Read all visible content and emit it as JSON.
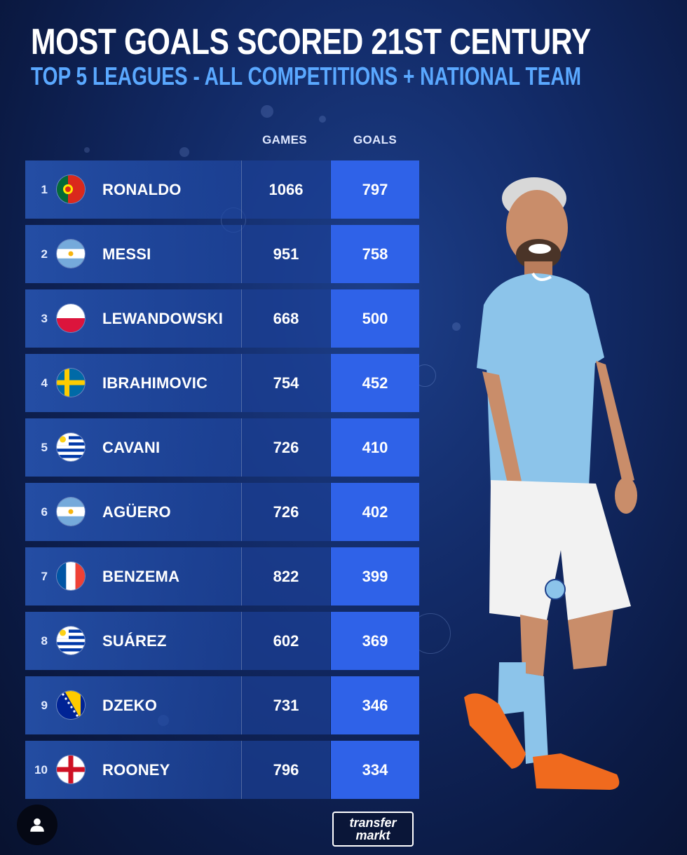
{
  "header": {
    "title": "MOST GOALS SCORED 21ST CENTURY",
    "subtitle": "TOP 5 LEAGUES - ALL COMPETITIONS + NATIONAL TEAM"
  },
  "columns": {
    "games": "GAMES",
    "goals": "GOALS"
  },
  "colors": {
    "accent": "#5aa8ff",
    "goals_cell": "#2f62e8",
    "row": "#2856b4"
  },
  "rows": [
    {
      "rank": "1",
      "flag": "portugal-flag-icon",
      "name": "RONALDO",
      "games": "1066",
      "goals": "797"
    },
    {
      "rank": "2",
      "flag": "argentina-flag-icon",
      "name": "MESSI",
      "games": "951",
      "goals": "758"
    },
    {
      "rank": "3",
      "flag": "poland-flag-icon",
      "name": "LEWANDOWSKI",
      "games": "668",
      "goals": "500"
    },
    {
      "rank": "4",
      "flag": "sweden-flag-icon",
      "name": "IBRAHIMOVIC",
      "games": "754",
      "goals": "452"
    },
    {
      "rank": "5",
      "flag": "uruguay-flag-icon",
      "name": "CAVANI",
      "games": "726",
      "goals": "410"
    },
    {
      "rank": "6",
      "flag": "argentina-flag-icon",
      "name": "AGÜERO",
      "games": "726",
      "goals": "402"
    },
    {
      "rank": "7",
      "flag": "france-flag-icon",
      "name": "BENZEMA",
      "games": "822",
      "goals": "399"
    },
    {
      "rank": "8",
      "flag": "uruguay-flag-icon",
      "name": "SUÁREZ",
      "games": "602",
      "goals": "369"
    },
    {
      "rank": "9",
      "flag": "bosnia-flag-icon",
      "name": "DZEKO",
      "games": "731",
      "goals": "346"
    },
    {
      "rank": "10",
      "flag": "england-flag-icon",
      "name": "ROONEY",
      "games": "796",
      "goals": "334"
    }
  ],
  "logo": {
    "line1": "transfer",
    "line2": "markt"
  },
  "player_image": {
    "name": "player-photo"
  }
}
